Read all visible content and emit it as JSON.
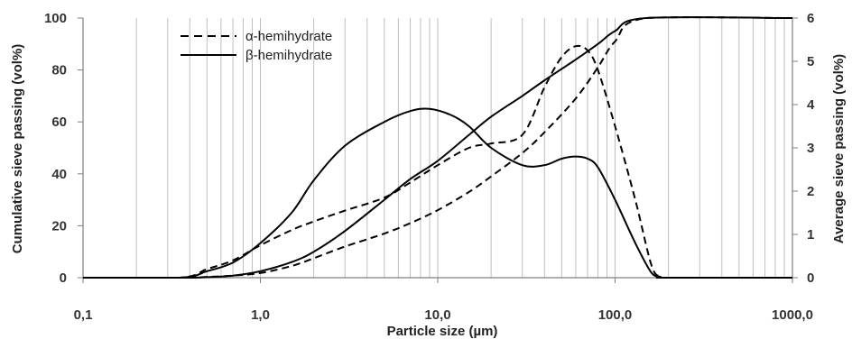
{
  "chart_data": {
    "type": "line",
    "xlabel": "Particle size (µm)",
    "ylabel": "Cumulative sieve passing (vol%)",
    "y2label": "Average sieve passing (vol%)",
    "x_scale": "log",
    "xlim": [
      0.1,
      1000
    ],
    "ylim": [
      0,
      100
    ],
    "y2lim": [
      0,
      6
    ],
    "x_ticks": [
      "0,1",
      "1,0",
      "10,0",
      "100,0",
      "1000,0"
    ],
    "y_ticks": [
      "0",
      "20",
      "40",
      "60",
      "80",
      "100"
    ],
    "y2_ticks": [
      "0",
      "1",
      "2",
      "3",
      "4",
      "5",
      "6"
    ],
    "grid": "vertical minor and major lines",
    "legend_position": "top-left",
    "colors": {
      "line": "#000000",
      "grid": "#bfbfbf",
      "axis": "#7f7f7f"
    },
    "legend": [
      {
        "label": "α-hemihydrate",
        "style": "dashed"
      },
      {
        "label": "β-hemihydrate",
        "style": "solid"
      }
    ],
    "series": [
      {
        "name": "α-hemihydrate",
        "style": "dashed",
        "kind": "cumulative",
        "axis": "left",
        "x": [
          0.1,
          0.35,
          0.5,
          0.7,
          1.0,
          1.5,
          2,
          3,
          5,
          7,
          10,
          15,
          20,
          30,
          40,
          60,
          80,
          100,
          150,
          1000
        ],
        "y": [
          0,
          0,
          0.3,
          0.8,
          1.8,
          4.5,
          7.5,
          12,
          17,
          21,
          26,
          33,
          39,
          48,
          56,
          69,
          81,
          91,
          100,
          100
        ]
      },
      {
        "name": "β-hemihydrate",
        "style": "solid",
        "kind": "cumulative",
        "axis": "left",
        "x": [
          0.1,
          0.35,
          0.5,
          0.7,
          1.0,
          1.5,
          2,
          3,
          5,
          7,
          10,
          15,
          20,
          30,
          40,
          60,
          80,
          100,
          150,
          1000
        ],
        "y": [
          0,
          0,
          0.2,
          0.8,
          2.5,
          6,
          10,
          18,
          30,
          38,
          45,
          55,
          62,
          70,
          76,
          84,
          90,
          95,
          100,
          100
        ]
      },
      {
        "name": "α-hemihydrate",
        "style": "dashed",
        "kind": "frequency",
        "axis": "right",
        "x": [
          0.1,
          0.35,
          0.5,
          0.7,
          1.0,
          1.5,
          2,
          3,
          5,
          7,
          10,
          15,
          20,
          30,
          40,
          50,
          60,
          70,
          80,
          100,
          130,
          160,
          180,
          200,
          1000
        ],
        "y": [
          0,
          0,
          0.2,
          0.4,
          0.75,
          1.1,
          1.3,
          1.55,
          1.85,
          2.2,
          2.6,
          3.0,
          3.1,
          3.3,
          4.4,
          5.1,
          5.35,
          5.25,
          4.8,
          3.5,
          1.8,
          0.3,
          0.02,
          0,
          0
        ]
      },
      {
        "name": "β-hemihydrate",
        "style": "solid",
        "kind": "frequency",
        "axis": "right",
        "x": [
          0.1,
          0.35,
          0.5,
          0.7,
          1.0,
          1.5,
          2,
          3,
          5,
          7,
          9,
          12,
          15,
          20,
          30,
          40,
          50,
          60,
          70,
          80,
          100,
          130,
          160,
          180,
          200,
          1000
        ],
        "y": [
          0,
          0,
          0.15,
          0.35,
          0.8,
          1.5,
          2.25,
          3.05,
          3.6,
          3.85,
          3.9,
          3.75,
          3.5,
          3.0,
          2.6,
          2.6,
          2.75,
          2.8,
          2.75,
          2.55,
          1.8,
          0.8,
          0.12,
          0.02,
          0,
          0
        ]
      }
    ]
  }
}
